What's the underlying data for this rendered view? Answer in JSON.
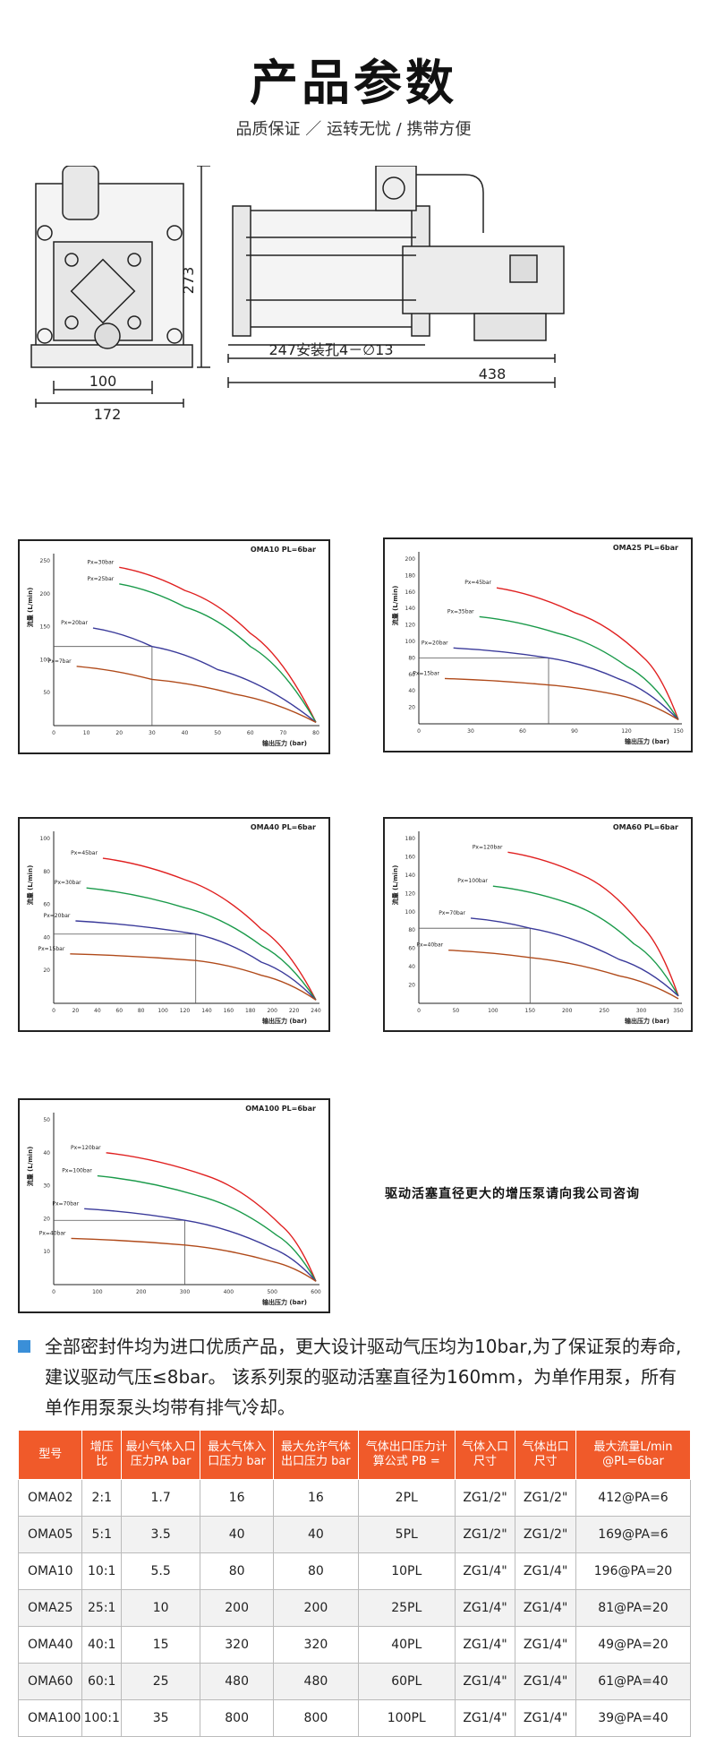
{
  "header": {
    "title": "产品参数",
    "subtitle": "品质保证 ／ 运转无忧 / 携带方便"
  },
  "drawing": {
    "dim_height": "273",
    "dim_100": "100",
    "dim_172": "172",
    "dim_247": "247安装孔4－∅13",
    "dim_438": "438"
  },
  "chart_data": [
    {
      "type": "line",
      "title": "OMA10 PL=6bar",
      "ylabel": "流量 (L/min)",
      "xlabel": "输出压力 (bar)",
      "xlim": [
        0,
        80
      ],
      "ylim": [
        0,
        250
      ],
      "xticks": [
        0,
        10,
        20,
        30,
        40,
        50,
        60,
        70,
        80
      ],
      "yticks": [
        50,
        100,
        150,
        200,
        250
      ],
      "series": [
        {
          "name": "Px=30bar",
          "color": "#e02020",
          "x": [
            20,
            40,
            60,
            80
          ],
          "y": [
            240,
            205,
            140,
            5
          ]
        },
        {
          "name": "Px=25bar",
          "color": "#1a9a4a",
          "x": [
            20,
            40,
            60,
            80
          ],
          "y": [
            215,
            180,
            120,
            5
          ]
        },
        {
          "name": "Px=20bar",
          "color": "#3a3a9a",
          "x": [
            12,
            30,
            50,
            80
          ],
          "y": [
            148,
            120,
            85,
            5
          ]
        },
        {
          "name": "Px=7bar",
          "color": "#b04a1a",
          "x": [
            7,
            30,
            55,
            80
          ],
          "y": [
            90,
            70,
            48,
            5
          ]
        }
      ],
      "annotation": {
        "x": 30,
        "y": 120
      }
    },
    {
      "type": "line",
      "title": "OMA25 PL=6bar",
      "ylabel": "流量 (L/min)",
      "xlabel": "输出压力 (bar)",
      "xlim": [
        0,
        150
      ],
      "ylim": [
        0,
        200
      ],
      "xticks": [
        0,
        30,
        60,
        90,
        120,
        150
      ],
      "yticks": [
        20,
        40,
        60,
        80,
        100,
        120,
        140,
        160,
        180,
        200
      ],
      "series": [
        {
          "name": "Px=45bar",
          "color": "#e02020",
          "x": [
            45,
            90,
            130,
            150
          ],
          "y": [
            165,
            135,
            80,
            5
          ]
        },
        {
          "name": "Px=35bar",
          "color": "#1a9a4a",
          "x": [
            35,
            80,
            120,
            150
          ],
          "y": [
            130,
            110,
            70,
            5
          ]
        },
        {
          "name": "Px=20bar",
          "color": "#3a3a9a",
          "x": [
            20,
            75,
            115,
            150
          ],
          "y": [
            92,
            80,
            55,
            5
          ]
        },
        {
          "name": "Px=15bar",
          "color": "#b04a1a",
          "x": [
            15,
            70,
            115,
            150
          ],
          "y": [
            55,
            48,
            35,
            5
          ]
        }
      ],
      "annotation": {
        "x": 75,
        "y": 80
      }
    },
    {
      "type": "line",
      "title": "OMA40 PL=6bar",
      "ylabel": "流量 (L/min)",
      "xlabel": "输出压力 (bar)",
      "xlim": [
        0,
        240
      ],
      "ylim": [
        0,
        100
      ],
      "xticks": [
        0,
        20,
        40,
        60,
        80,
        100,
        120,
        140,
        160,
        180,
        200,
        220,
        240
      ],
      "yticks": [
        20,
        40,
        60,
        80,
        100
      ],
      "series": [
        {
          "name": "Px=45bar",
          "color": "#e02020",
          "x": [
            45,
            120,
            190,
            240
          ],
          "y": [
            88,
            75,
            45,
            2
          ]
        },
        {
          "name": "Px=30bar",
          "color": "#1a9a4a",
          "x": [
            30,
            120,
            190,
            240
          ],
          "y": [
            70,
            58,
            35,
            2
          ]
        },
        {
          "name": "Px=20bar",
          "color": "#3a3a9a",
          "x": [
            20,
            130,
            190,
            240
          ],
          "y": [
            50,
            42,
            25,
            2
          ]
        },
        {
          "name": "Px=15bar",
          "color": "#b04a1a",
          "x": [
            15,
            130,
            190,
            240
          ],
          "y": [
            30,
            26,
            17,
            2
          ]
        }
      ],
      "annotation": {
        "x": 130,
        "y": 42
      }
    },
    {
      "type": "line",
      "title": "OMA60 PL=6bar",
      "ylabel": "流量 (L/min)",
      "xlabel": "输出压力 (bar)",
      "xlim": [
        0,
        350
      ],
      "ylim": [
        0,
        180
      ],
      "xticks": [
        0,
        50,
        100,
        150,
        200,
        250,
        300,
        350
      ],
      "yticks": [
        20,
        40,
        60,
        80,
        100,
        120,
        140,
        160,
        180
      ],
      "series": [
        {
          "name": "Px=120bar",
          "color": "#e02020",
          "x": [
            120,
            220,
            300,
            350
          ],
          "y": [
            165,
            140,
            85,
            8
          ]
        },
        {
          "name": "Px=100bar",
          "color": "#1a9a4a",
          "x": [
            100,
            200,
            290,
            350
          ],
          "y": [
            128,
            110,
            65,
            8
          ]
        },
        {
          "name": "Px=70bar",
          "color": "#3a3a9a",
          "x": [
            70,
            150,
            270,
            350
          ],
          "y": [
            93,
            82,
            48,
            8
          ]
        },
        {
          "name": "Px=40bar",
          "color": "#b04a1a",
          "x": [
            40,
            150,
            270,
            350
          ],
          "y": [
            58,
            50,
            30,
            5
          ]
        }
      ],
      "annotation": {
        "x": 150,
        "y": 82
      }
    },
    {
      "type": "line",
      "title": "OMA100 PL=6bar",
      "ylabel": "流量 (L/min)",
      "xlabel": "输出压力 (bar)",
      "xlim": [
        0,
        600
      ],
      "ylim": [
        0,
        50
      ],
      "xticks": [
        0,
        100,
        200,
        300,
        400,
        500,
        600
      ],
      "yticks": [
        10,
        20,
        30,
        40,
        50
      ],
      "series": [
        {
          "name": "Px=120bar",
          "color": "#e02020",
          "x": [
            120,
            350,
            520,
            600
          ],
          "y": [
            40,
            33,
            18,
            1
          ]
        },
        {
          "name": "Px=100bar",
          "color": "#1a9a4a",
          "x": [
            100,
            330,
            510,
            600
          ],
          "y": [
            33,
            27,
            15,
            1
          ]
        },
        {
          "name": "Px=70bar",
          "color": "#3a3a9a",
          "x": [
            70,
            300,
            500,
            600
          ],
          "y": [
            23,
            19.5,
            11,
            1
          ]
        },
        {
          "name": "Px=40bar",
          "color": "#b04a1a",
          "x": [
            40,
            300,
            500,
            600
          ],
          "y": [
            14,
            12,
            7,
            1
          ]
        }
      ],
      "annotation": {
        "x": 300,
        "y": 19.5
      }
    }
  ],
  "note": "驱动活塞直径更大的增压泵请向我公司咨询",
  "paragraph": "全部密封件均为进口优质产品，更大设计驱动气压均为10bar,为了保证泵的寿命,建议驱动气压≤8bar。 该系列泵的驱动活塞直径为160mm，为单作用泵，所有单作用泵泵头均带有排气冷却。",
  "table": {
    "headers": [
      "型号",
      "增压比",
      "最小气体入口压力PA bar",
      "最大气体入口压力 bar",
      "最大允许气体出口压力 bar",
      "气体出口压力计算公式 PB =",
      "气体入口尺寸",
      "气体出口尺寸",
      "最大流量L/min @PL=6bar"
    ],
    "rows": [
      [
        "OMA02",
        "2:1",
        "1.7",
        "16",
        "16",
        "2PL",
        "ZG1/2\"",
        "ZG1/2\"",
        "412@PA=6"
      ],
      [
        "OMA05",
        "5:1",
        "3.5",
        "40",
        "40",
        "5PL",
        "ZG1/2\"",
        "ZG1/2\"",
        "169@PA=6"
      ],
      [
        "OMA10",
        "10:1",
        "5.5",
        "80",
        "80",
        "10PL",
        "ZG1/4\"",
        "ZG1/4\"",
        "196@PA=20"
      ],
      [
        "OMA25",
        "25:1",
        "10",
        "200",
        "200",
        "25PL",
        "ZG1/4\"",
        "ZG1/4\"",
        "81@PA=20"
      ],
      [
        "OMA40",
        "40:1",
        "15",
        "320",
        "320",
        "40PL",
        "ZG1/4\"",
        "ZG1/4\"",
        "49@PA=20"
      ],
      [
        "OMA60",
        "60:1",
        "25",
        "480",
        "480",
        "60PL",
        "ZG1/4\"",
        "ZG1/4\"",
        "61@PA=40"
      ],
      [
        "OMA100",
        "100:1",
        "35",
        "800",
        "800",
        "100PL",
        "ZG1/4\"",
        "ZG1/4\"",
        "39@PA=40"
      ]
    ]
  }
}
